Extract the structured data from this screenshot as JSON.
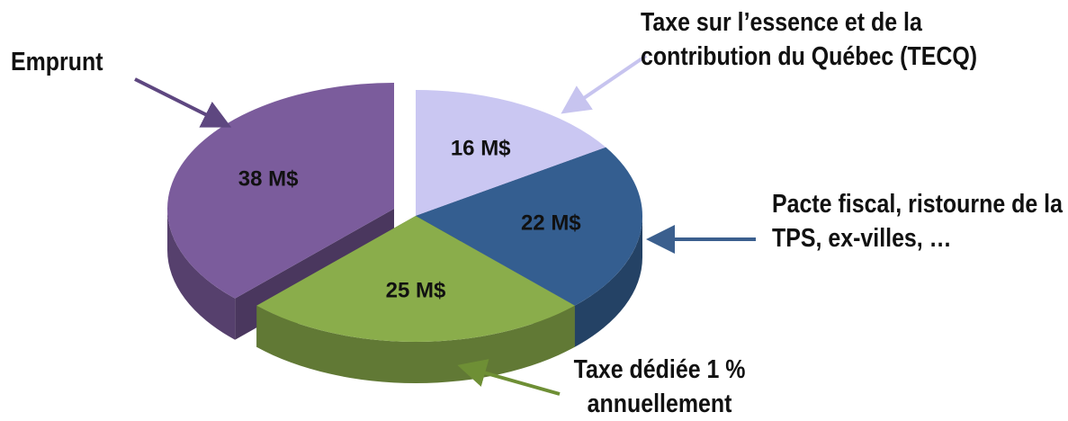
{
  "chart_data": {
    "type": "pie",
    "categories": [
      "Taxe sur l’essence et de la contribution du Québec (TECQ)",
      "Pacte fiscal, ristourne de la TPS, ex-villes, …",
      "Taxe dédiée 1 % annuellement",
      "Emprunt"
    ],
    "values": [
      16,
      22,
      25,
      38
    ],
    "value_labels": [
      "16 M$",
      "22 M$",
      "25 M$",
      "38 M$"
    ],
    "colors": [
      "#cac7f2",
      "#345e90",
      "#8aad4b",
      "#7b5c9c"
    ]
  }
}
